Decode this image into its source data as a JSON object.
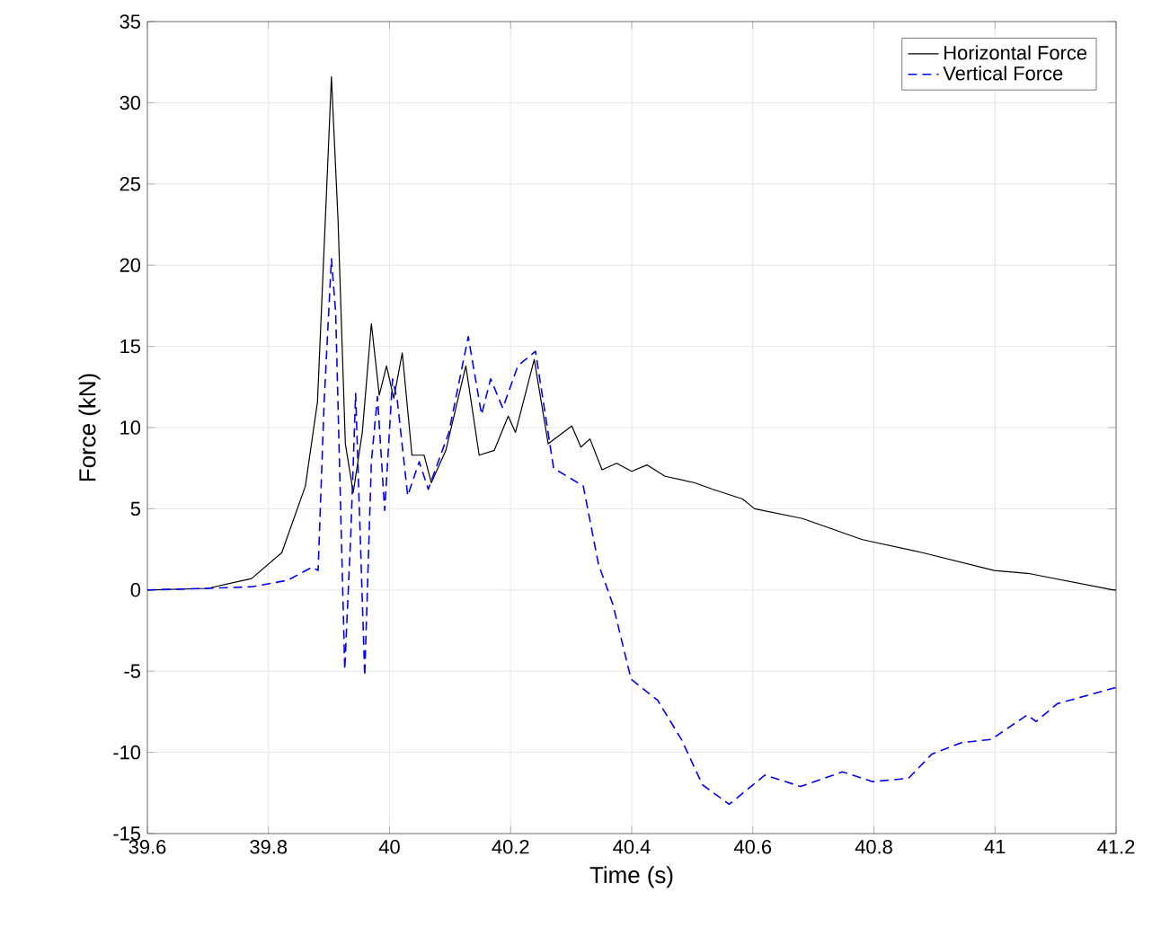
{
  "chart_data": {
    "type": "line",
    "xlabel": "Time (s)",
    "ylabel": "Force (kN)",
    "xlim": [
      39.6,
      41.2
    ],
    "ylim": [
      -15,
      35
    ],
    "xticks": [
      39.6,
      39.8,
      40,
      40.2,
      40.4,
      40.6,
      40.8,
      41,
      41.2
    ],
    "yticks": [
      -15,
      -10,
      -5,
      0,
      5,
      10,
      15,
      20,
      25,
      30,
      35
    ],
    "grid": true,
    "legend": "top right",
    "series": [
      {
        "name": "Horizontal Force",
        "color": "#000000",
        "line_style": "solid",
        "x": [
          39.6,
          39.7,
          39.772,
          39.822,
          39.861,
          39.881,
          39.896,
          39.904,
          39.915,
          39.927,
          39.94,
          39.955,
          39.97,
          39.983,
          39.995,
          40.007,
          40.021,
          40.037,
          40.057,
          40.069,
          40.093,
          40.126,
          40.148,
          40.173,
          40.196,
          40.208,
          40.239,
          40.262,
          40.301,
          40.316,
          40.331,
          40.351,
          40.375,
          40.4,
          40.425,
          40.455,
          40.504,
          40.534,
          40.583,
          40.603,
          40.682,
          40.781,
          40.88,
          40.999,
          41.058,
          41.196,
          41.2
        ],
        "values": [
          0,
          0.1,
          0.7,
          2.3,
          6.4,
          11.6,
          24.6,
          31.6,
          22.7,
          9.0,
          6.0,
          9.7,
          16.4,
          12.0,
          13.8,
          11.8,
          14.6,
          8.3,
          8.3,
          6.6,
          8.6,
          13.8,
          8.3,
          8.6,
          10.7,
          9.7,
          14.2,
          9.0,
          10.1,
          8.8,
          9.3,
          7.4,
          7.8,
          7.3,
          7.7,
          7.0,
          6.6,
          6.2,
          5.6,
          5.0,
          4.4,
          3.1,
          2.3,
          1.2,
          1.0,
          0.0,
          0.0
        ]
      },
      {
        "name": "Vertical Force",
        "color": "#0000ff",
        "line_style": "dashed",
        "x": [
          39.6,
          39.7,
          39.773,
          39.832,
          39.872,
          39.882,
          39.892,
          39.904,
          39.911,
          39.926,
          39.936,
          39.944,
          39.959,
          39.97,
          39.98,
          39.992,
          40.005,
          40.013,
          40.03,
          40.049,
          40.064,
          40.098,
          40.13,
          40.152,
          40.167,
          40.187,
          40.212,
          40.241,
          40.271,
          40.32,
          40.345,
          40.369,
          40.399,
          40.443,
          40.482,
          40.517,
          40.561,
          40.62,
          40.679,
          40.748,
          40.798,
          40.857,
          40.896,
          40.945,
          40.994,
          41.053,
          41.068,
          41.103,
          41.142,
          41.2
        ],
        "values": [
          0,
          0.1,
          0.2,
          0.6,
          1.4,
          1.2,
          11.6,
          20.4,
          17.1,
          -4.9,
          3.4,
          12.1,
          -5.3,
          7.9,
          11.9,
          4.9,
          13.0,
          11.6,
          5.8,
          7.9,
          6.2,
          9.7,
          15.6,
          10.8,
          13.0,
          11.2,
          13.8,
          14.7,
          7.5,
          6.4,
          1.6,
          -0.9,
          -5.5,
          -6.8,
          -9.2,
          -12.0,
          -13.2,
          -11.4,
          -12.1,
          -11.2,
          -11.8,
          -11.6,
          -10.1,
          -9.4,
          -9.2,
          -7.7,
          -8.1,
          -7.0,
          -6.6,
          -6.0
        ]
      }
    ]
  }
}
